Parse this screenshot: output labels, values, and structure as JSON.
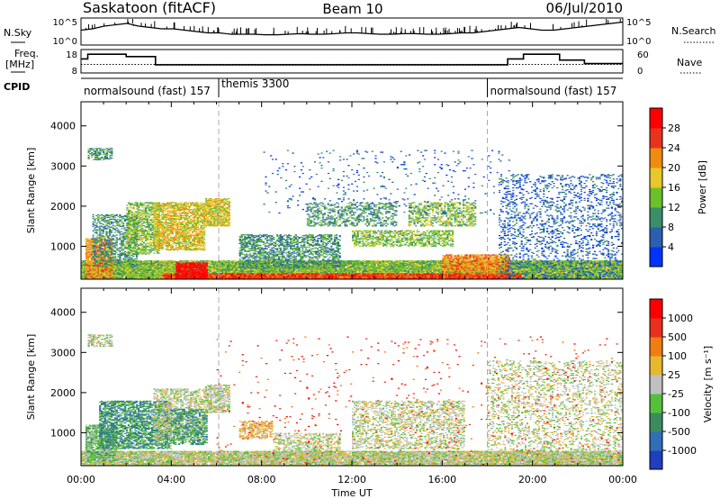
{
  "header": {
    "station": "Saskatoon (fitACF)",
    "beam": "Beam 10",
    "date": "06/Jul/2010"
  },
  "noise_panel": {
    "left_label": "N.Sky",
    "right_label": "N.Search",
    "ticks": [
      "10^5",
      "10^0"
    ],
    "series_sky": [
      0.55,
      0.6,
      0.7,
      0.75,
      0.8,
      0.7,
      0.65,
      0.6,
      0.6,
      0.55,
      0.5,
      0.45,
      0.45,
      0.4,
      0.4,
      0.4,
      0.38,
      0.38,
      0.4,
      0.42,
      0.4,
      0.4,
      0.42,
      0.45,
      0.45,
      0.42,
      0.4,
      0.4,
      0.42,
      0.42,
      0.4,
      0.4,
      0.42,
      0.45,
      0.45,
      0.5,
      0.55,
      0.6,
      0.65,
      0.6,
      0.55,
      0.55,
      0.6,
      0.65,
      0.7,
      0.75,
      0.8,
      0.85
    ]
  },
  "freq_panel": {
    "left_label_1": "Freq.",
    "left_label_2": "[MHz]",
    "left_ticks": [
      "18",
      "8"
    ],
    "right_ticks": [
      "60",
      "0"
    ],
    "right_label": "Nave",
    "freq_steps": [
      {
        "t_start": 0.0,
        "t_end": 0.3,
        "mhz": 14
      },
      {
        "t_start": 0.3,
        "t_end": 2.0,
        "mhz": 16
      },
      {
        "t_start": 2.0,
        "t_end": 3.3,
        "mhz": 15
      },
      {
        "t_start": 3.3,
        "t_end": 18.9,
        "mhz": 11.5
      },
      {
        "t_start": 18.9,
        "t_end": 19.6,
        "mhz": 14
      },
      {
        "t_start": 19.6,
        "t_end": 21.2,
        "mhz": 16
      },
      {
        "t_start": 21.2,
        "t_end": 22.3,
        "mhz": 13.5
      },
      {
        "t_start": 22.3,
        "t_end": 24.0,
        "mhz": 12
      }
    ],
    "nave_level": 22
  },
  "cpid": {
    "label": "CPID",
    "segments": [
      {
        "text": "normalsound (fast) 157",
        "t_start": 0.0
      },
      {
        "text": "themis 3300",
        "t_start": 6.1
      },
      {
        "text": "normalsound (fast) 157",
        "t_start": 18.0
      }
    ]
  },
  "chart_data": [
    {
      "type": "heatmap",
      "title": "Power",
      "ylabel": "Slant Range [km]",
      "ylim": [
        180,
        4600
      ],
      "xlim": [
        0,
        24
      ],
      "y_ticks": [
        "1000",
        "2000",
        "3000",
        "4000"
      ],
      "colorbar_label": "Power [dB]",
      "colorbar_ticks": [
        "4",
        "8",
        "12",
        "16",
        "20",
        "24",
        "28"
      ],
      "colors": [
        "#0033ff",
        "#2c5fb0",
        "#3a8f6a",
        "#6cc02a",
        "#e6c82a",
        "#f08c10",
        "#e8321e",
        "#ff0000"
      ],
      "bands": [
        {
          "t0": 0.0,
          "t1": 24.0,
          "r0": 180,
          "r1": 650,
          "d": 0.95,
          "c": 3
        },
        {
          "t0": 3.6,
          "t1": 19.5,
          "r0": 180,
          "r1": 330,
          "d": 0.95,
          "c": 6
        },
        {
          "t0": 4.2,
          "t1": 5.6,
          "r0": 180,
          "r1": 600,
          "d": 0.9,
          "c": 7
        },
        {
          "t0": 0.2,
          "t1": 1.4,
          "r0": 200,
          "r1": 1200,
          "d": 0.7,
          "c": 5
        },
        {
          "t0": 0.5,
          "t1": 2.5,
          "r0": 500,
          "r1": 1800,
          "d": 0.45,
          "c": 2
        },
        {
          "t0": 2.0,
          "t1": 3.5,
          "r0": 800,
          "r1": 2100,
          "d": 0.55,
          "c": 3
        },
        {
          "t0": 3.2,
          "t1": 5.5,
          "r0": 900,
          "r1": 2100,
          "d": 0.65,
          "c": 4
        },
        {
          "t0": 5.5,
          "t1": 6.6,
          "r0": 1500,
          "r1": 2200,
          "d": 0.75,
          "c": 4
        },
        {
          "t0": 7.0,
          "t1": 11.5,
          "r0": 450,
          "r1": 1300,
          "d": 0.5,
          "c": 2
        },
        {
          "t0": 10.0,
          "t1": 14.0,
          "r0": 1500,
          "r1": 2100,
          "d": 0.35,
          "c": 2
        },
        {
          "t0": 12.0,
          "t1": 16.5,
          "r0": 1000,
          "r1": 1400,
          "d": 0.5,
          "c": 3
        },
        {
          "t0": 14.5,
          "t1": 17.5,
          "r0": 1500,
          "r1": 2100,
          "d": 0.45,
          "c": 3
        },
        {
          "t0": 16.0,
          "t1": 19.0,
          "r0": 350,
          "r1": 800,
          "d": 0.8,
          "c": 5
        },
        {
          "t0": 18.5,
          "t1": 24.0,
          "r0": 180,
          "r1": 2800,
          "d": 0.18,
          "c": 1
        },
        {
          "t0": 0.3,
          "t1": 1.4,
          "r0": 3150,
          "r1": 3450,
          "d": 0.5,
          "c": 2
        },
        {
          "t0": 8.0,
          "t1": 19.0,
          "r0": 1800,
          "r1": 3400,
          "d": 0.03,
          "c": 1
        }
      ]
    },
    {
      "type": "heatmap",
      "title": "Velocity",
      "ylabel": "Slant Range [km]",
      "xlabel": "Time UT",
      "ylim": [
        180,
        4600
      ],
      "xlim": [
        0,
        24
      ],
      "y_ticks": [
        "1000",
        "2000",
        "3000",
        "4000"
      ],
      "x_ticks": [
        "00:00",
        "04:00",
        "08:00",
        "12:00",
        "16:00",
        "20:00",
        "00:00"
      ],
      "colorbar_label": "Velocity [m s⁻¹]",
      "colorbar_ticks": [
        "1000",
        "500",
        "100",
        "25",
        "-25",
        "-100",
        "-500",
        "-1000"
      ],
      "colors": [
        "#1f3fbf",
        "#2f6fb8",
        "#3a8c5e",
        "#55c03a",
        "#c0c0c0",
        "#e6b830",
        "#f07d12",
        "#e8301e",
        "#ff0000"
      ],
      "bands": [
        {
          "t0": 0.0,
          "t1": 24.0,
          "r0": 180,
          "r1": 550,
          "d": 0.85,
          "c": 4
        },
        {
          "t0": 0.2,
          "t1": 1.6,
          "r0": 300,
          "r1": 1200,
          "d": 0.65,
          "c": 3
        },
        {
          "t0": 0.8,
          "t1": 4.0,
          "r0": 600,
          "r1": 1800,
          "d": 0.6,
          "c": 2
        },
        {
          "t0": 3.2,
          "t1": 5.5,
          "r0": 800,
          "r1": 2100,
          "d": 0.45,
          "c": 4
        },
        {
          "t0": 4.0,
          "t1": 5.6,
          "r0": 700,
          "r1": 1600,
          "d": 0.45,
          "c": 2
        },
        {
          "t0": 5.5,
          "t1": 6.6,
          "r0": 1500,
          "r1": 2200,
          "d": 0.6,
          "c": 4
        },
        {
          "t0": 7.0,
          "t1": 8.5,
          "r0": 850,
          "r1": 1300,
          "d": 0.5,
          "c": 5
        },
        {
          "t0": 8.5,
          "t1": 11.5,
          "r0": 400,
          "r1": 1000,
          "d": 0.35,
          "c": 4
        },
        {
          "t0": 12.0,
          "t1": 17.0,
          "r0": 600,
          "r1": 1800,
          "d": 0.35,
          "c": 4
        },
        {
          "t0": 18.0,
          "t1": 24.0,
          "r0": 180,
          "r1": 2800,
          "d": 0.22,
          "c": 4
        },
        {
          "t0": 6.0,
          "t1": 24.0,
          "r0": 180,
          "r1": 3400,
          "d": 0.015,
          "c": 7
        },
        {
          "t0": 0.3,
          "t1": 1.4,
          "r0": 3150,
          "r1": 3450,
          "d": 0.45,
          "c": 4
        }
      ]
    }
  ]
}
